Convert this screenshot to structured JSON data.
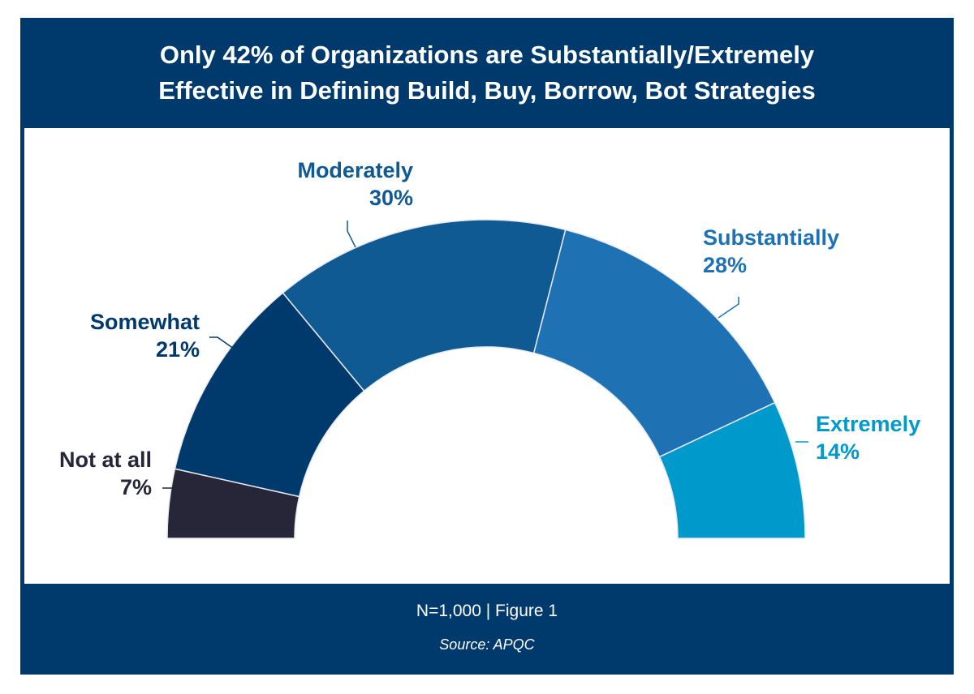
{
  "chart_data": {
    "type": "pie",
    "subtype": "semicircle-donut",
    "title_lines": [
      "Only 42% of Organizations are Substantially/Extremely",
      "Effective in Defining Build, Buy, Borrow, Bot Strategies"
    ],
    "categories": [
      "Not at all",
      "Somewhat",
      "Moderately",
      "Substantially",
      "Extremely"
    ],
    "values": [
      7,
      21,
      30,
      28,
      14
    ],
    "value_labels": [
      "7%",
      "21%",
      "30%",
      "28%",
      "14%"
    ],
    "colors": [
      "#272639",
      "#003a6c",
      "#105a94",
      "#1e72b4",
      "#0099cc"
    ],
    "label_colors": [
      "#272639",
      "#003a6c",
      "#105a94",
      "#1e72b4",
      "#0099cc"
    ]
  },
  "footer": {
    "note": "N=1,000 | Figure 1",
    "source": "Source: APQC"
  },
  "colors": {
    "frame": "#003a6c"
  }
}
